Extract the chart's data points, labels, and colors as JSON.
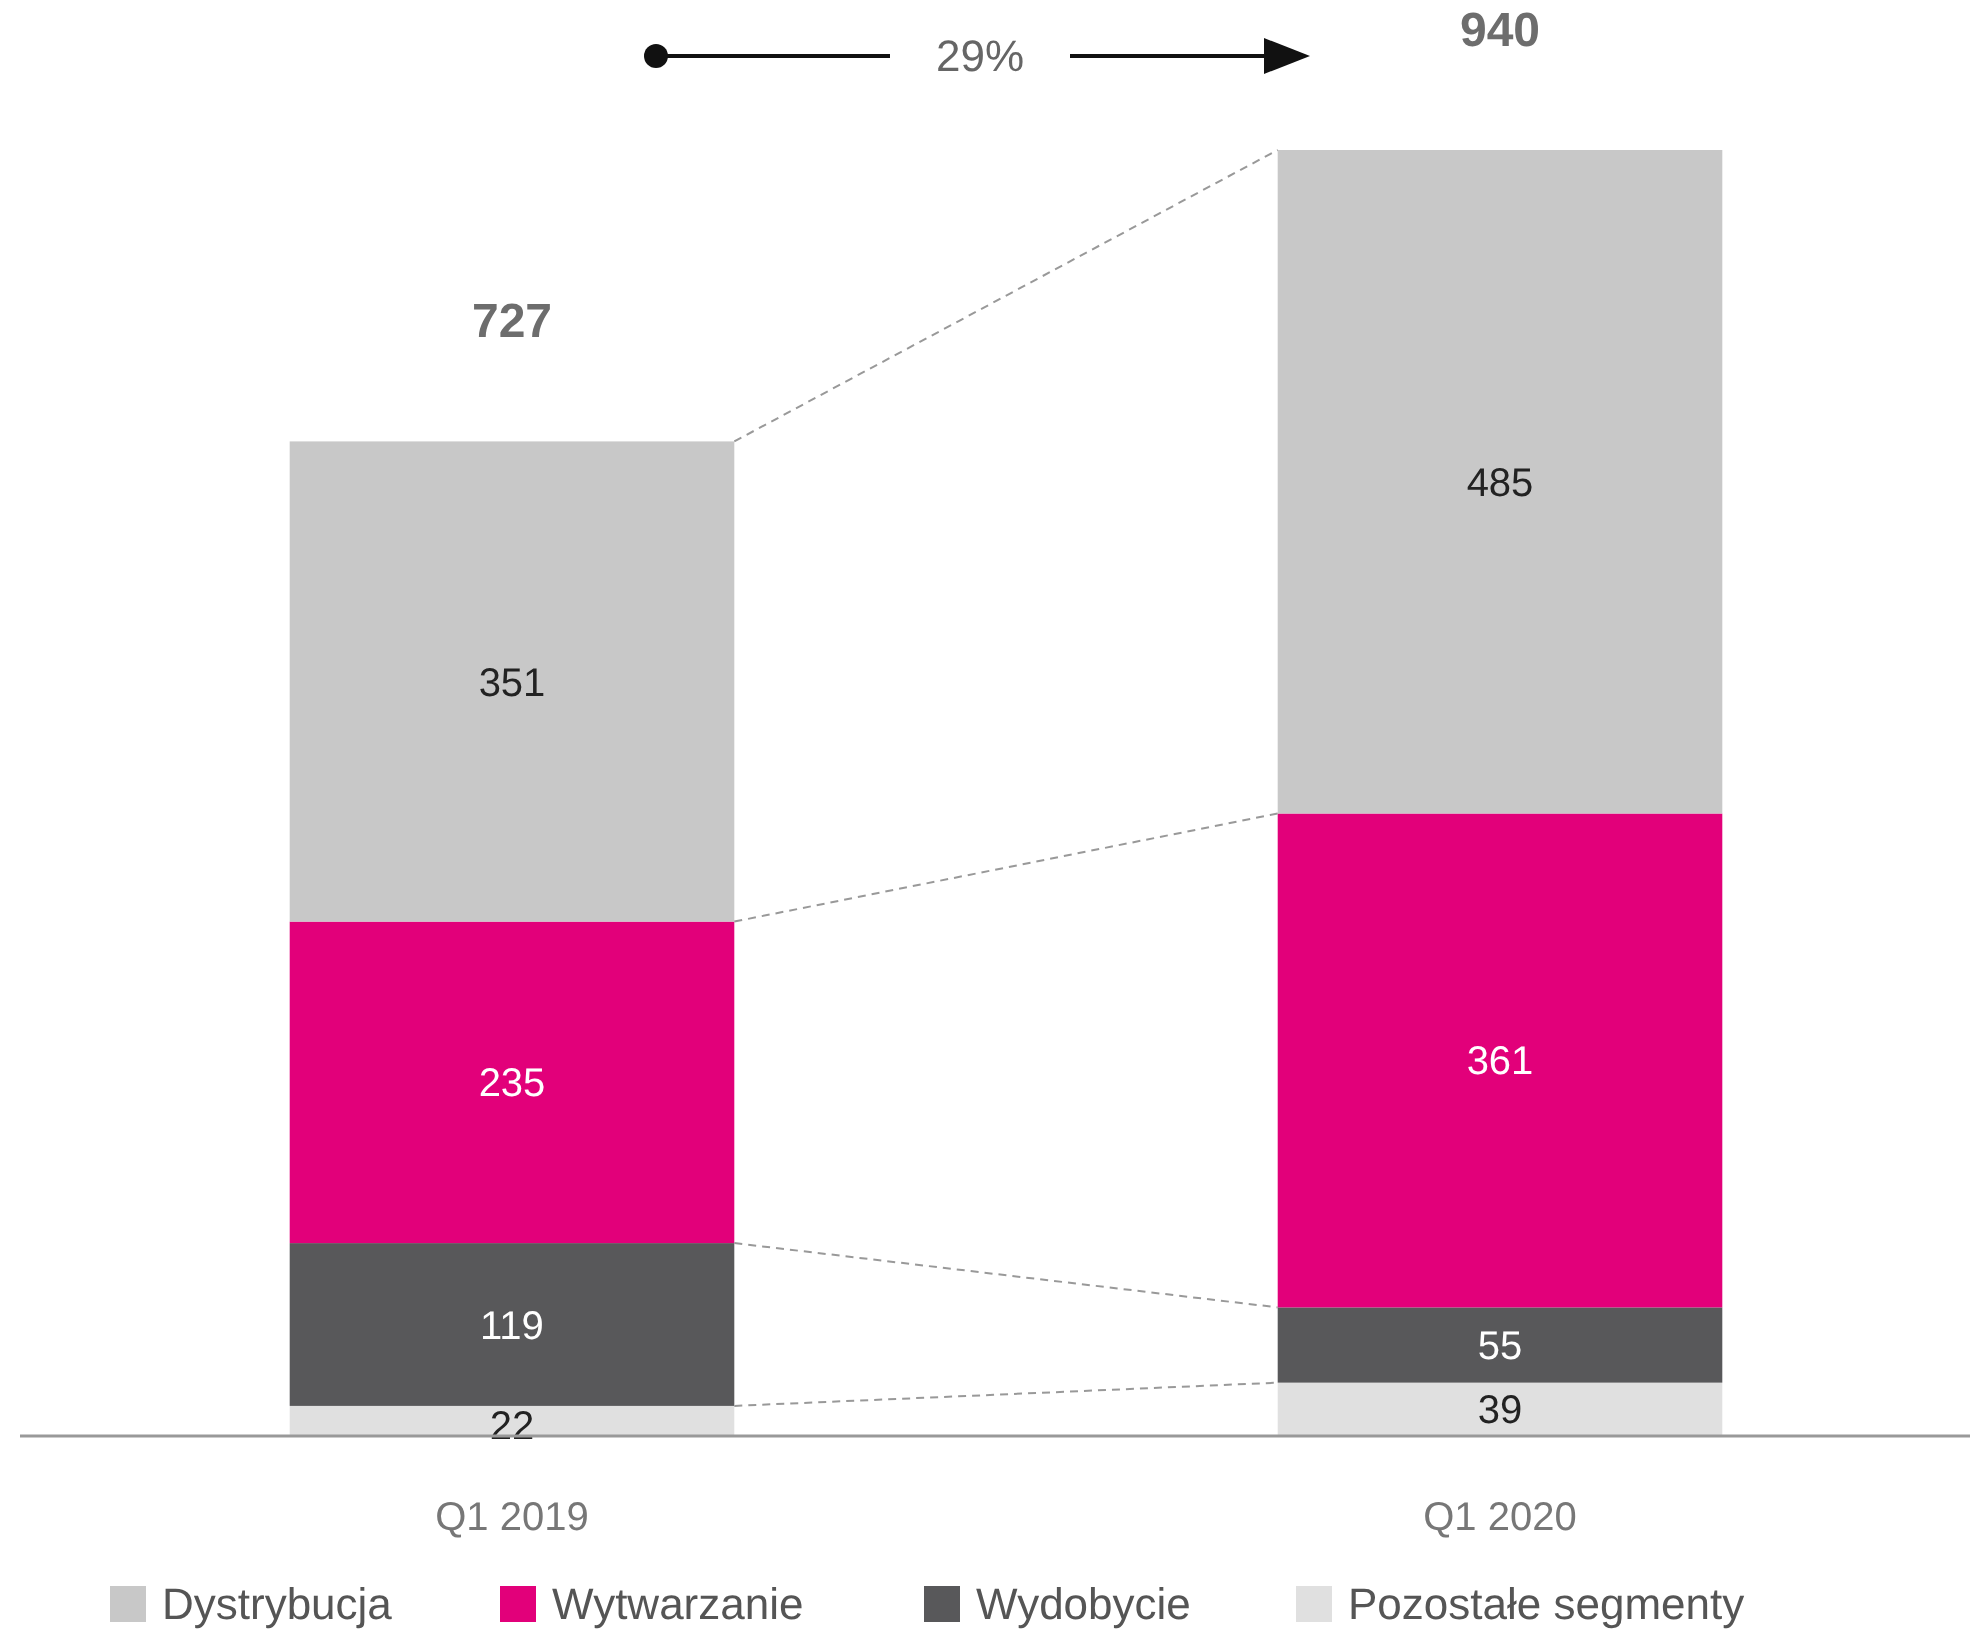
{
  "chart_data": {
    "type": "bar",
    "stacked": true,
    "categories": [
      "Q1 2019",
      "Q1 2020"
    ],
    "series": [
      {
        "name": "Pozostałe segmenty",
        "color": "#e0e0e0",
        "values": [
          22,
          39
        ]
      },
      {
        "name": "Wydobycie",
        "color": "#58585a",
        "values": [
          119,
          55
        ]
      },
      {
        "name": "Wytwarzanie",
        "color": "#e2007a",
        "values": [
          235,
          361
        ]
      },
      {
        "name": "Dystrybucja",
        "color": "#c8c8c8",
        "values": [
          351,
          485
        ]
      }
    ],
    "ylim": [
      0,
      940
    ],
    "tick_labels": "x",
    "data_labels": true,
    "totals": [
      "727",
      "940"
    ],
    "legend": "bottom",
    "annotations": [
      "29%"
    ]
  }
}
